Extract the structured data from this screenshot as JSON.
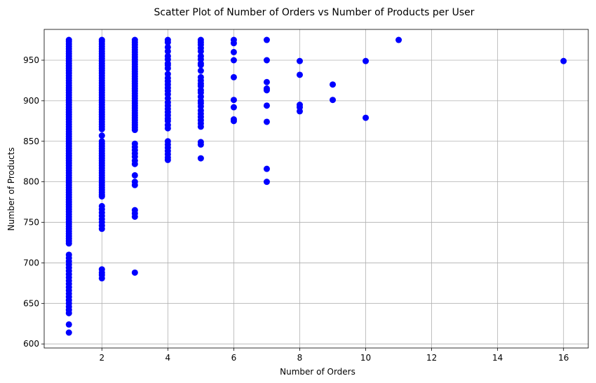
{
  "chart_data": {
    "type": "scatter",
    "title": "Scatter Plot of Number of Orders vs Number of Products per User",
    "xlabel": "Number of Orders",
    "ylabel": "Number of Products",
    "xlim": [
      0.25,
      16.75
    ],
    "ylim": [
      595,
      988
    ],
    "xticks": [
      2,
      4,
      6,
      8,
      10,
      12,
      14,
      16
    ],
    "yticks": [
      600,
      650,
      700,
      750,
      800,
      850,
      900,
      950
    ],
    "grid": true,
    "marker_color": "#0000ff",
    "columns": [
      {
        "x": 1,
        "values": [
          975,
          973,
          970,
          967,
          964,
          961,
          958,
          955,
          952,
          949,
          946,
          943,
          940,
          937,
          934,
          931,
          928,
          925,
          922,
          919,
          916,
          913,
          910,
          907,
          904,
          901,
          898,
          895,
          892,
          889,
          886,
          883,
          880,
          877,
          874,
          871,
          868,
          865,
          862,
          859,
          856,
          853,
          850,
          847,
          844,
          841,
          838,
          835,
          832,
          829,
          826,
          823,
          820,
          817,
          814,
          811,
          808,
          805,
          802,
          799,
          796,
          793,
          790,
          787,
          784,
          781,
          778,
          775,
          772,
          769,
          766,
          763,
          760,
          757,
          754,
          751,
          748,
          745,
          742,
          739,
          736,
          733,
          730,
          727,
          724,
          710,
          706,
          702,
          698,
          694,
          690,
          686,
          682,
          678,
          674,
          670,
          666,
          662,
          658,
          654,
          650,
          646,
          642,
          638,
          624,
          614
        ]
      },
      {
        "x": 2,
        "values": [
          975,
          973,
          970,
          967,
          964,
          961,
          958,
          955,
          952,
          949,
          946,
          943,
          940,
          937,
          934,
          931,
          928,
          925,
          922,
          919,
          916,
          913,
          910,
          907,
          904,
          901,
          898,
          895,
          892,
          889,
          886,
          883,
          880,
          877,
          874,
          871,
          868,
          865,
          857,
          850,
          847,
          844,
          841,
          838,
          835,
          832,
          829,
          826,
          823,
          820,
          817,
          814,
          811,
          808,
          805,
          802,
          799,
          796,
          793,
          790,
          787,
          784,
          782,
          770,
          766,
          762,
          758,
          754,
          750,
          746,
          742,
          692,
          688,
          685,
          681
        ]
      },
      {
        "x": 3,
        "values": [
          975,
          972,
          969,
          966,
          963,
          960,
          957,
          954,
          951,
          948,
          945,
          942,
          939,
          936,
          933,
          930,
          927,
          924,
          921,
          918,
          915,
          912,
          909,
          906,
          903,
          900,
          897,
          894,
          891,
          888,
          885,
          882,
          879,
          876,
          873,
          870,
          867,
          864,
          847,
          843,
          839,
          835,
          831,
          826,
          822,
          808,
          800,
          796,
          765,
          761,
          757,
          688
        ]
      },
      {
        "x": 4,
        "values": [
          975,
          972,
          966,
          961,
          955,
          951,
          946,
          944,
          940,
          933,
          928,
          924,
          920,
          916,
          912,
          908,
          903,
          898,
          894,
          890,
          886,
          882,
          878,
          875,
          870,
          866,
          850,
          846,
          842,
          838,
          834,
          830,
          827
        ]
      },
      {
        "x": 5,
        "values": [
          975,
          972,
          969,
          965,
          961,
          955,
          951,
          946,
          944,
          937,
          929,
          925,
          921,
          918,
          913,
          910,
          905,
          900,
          897,
          893,
          888,
          884,
          880,
          876,
          872,
          868,
          849,
          846,
          829
        ]
      },
      {
        "x": 6,
        "values": [
          975,
          971,
          960,
          950,
          929,
          901,
          892,
          877,
          875
        ]
      },
      {
        "x": 7,
        "values": [
          975,
          950,
          923,
          915,
          913,
          894,
          874,
          816,
          800
        ]
      },
      {
        "x": 8,
        "values": [
          949,
          932,
          895,
          892,
          887
        ]
      },
      {
        "x": 9,
        "values": [
          920,
          901
        ]
      },
      {
        "x": 10,
        "values": [
          949,
          879
        ]
      },
      {
        "x": 11,
        "values": [
          975
        ]
      },
      {
        "x": 16,
        "values": [
          949
        ]
      }
    ]
  }
}
